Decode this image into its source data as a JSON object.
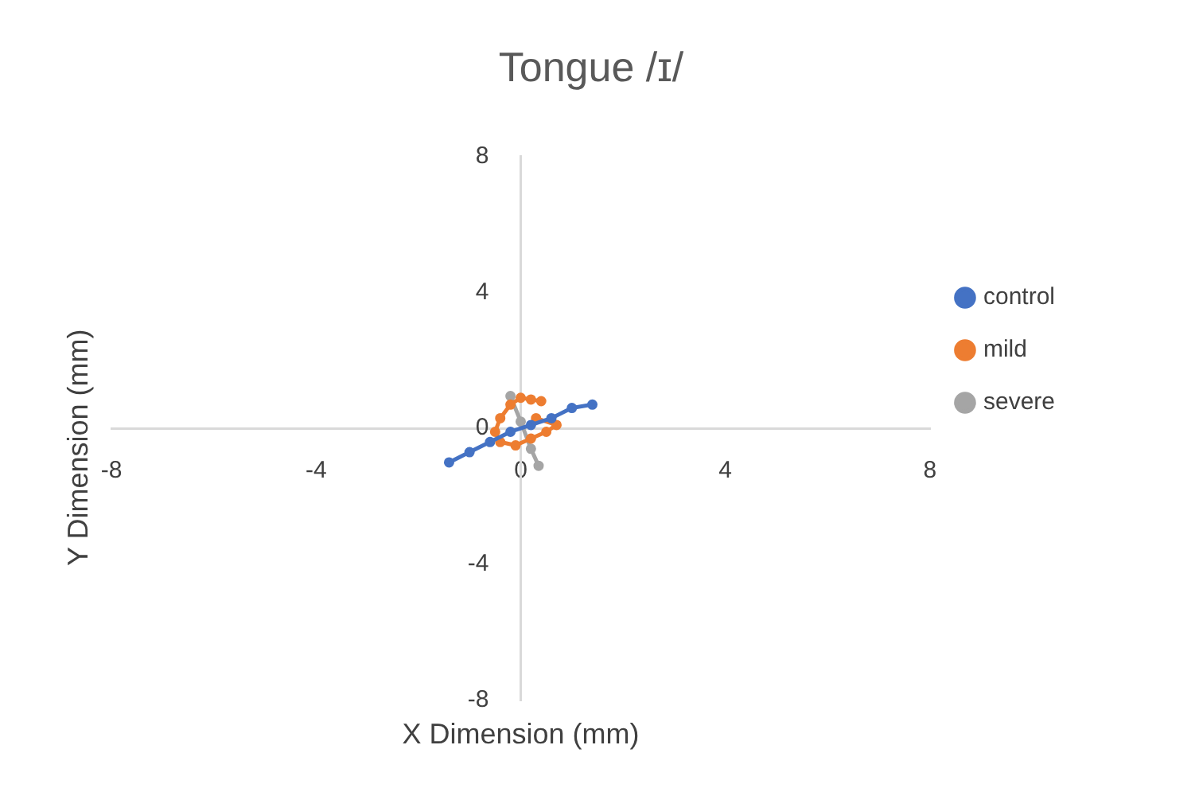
{
  "chart_data": {
    "type": "line",
    "title": "Tongue /ɪ/",
    "xlabel": "X Dimension (mm)",
    "ylabel": "Y Dimension (mm)",
    "xlim": [
      -8,
      8
    ],
    "xticks": [
      -8,
      -4,
      0,
      4,
      8
    ],
    "ylim": [
      -8,
      8
    ],
    "yticks": [
      -8,
      -4,
      0,
      4,
      8
    ],
    "grid": false,
    "legend": "right",
    "marker": "circle",
    "line_style": "solid",
    "series": [
      {
        "name": "control",
        "color": "#4472c4",
        "x": [
          -1.4,
          -1.0,
          -0.6,
          -0.2,
          0.2,
          0.6,
          1.0,
          1.4
        ],
        "values": [
          -1.0,
          -0.7,
          -0.4,
          -0.1,
          0.1,
          0.3,
          0.6,
          0.7
        ]
      },
      {
        "name": "mild",
        "color": "#ed7d31",
        "x": [
          0.4,
          0.2,
          0.0,
          -0.2,
          -0.4,
          -0.5,
          -0.4,
          -0.1,
          0.2,
          0.5,
          0.7,
          0.3
        ],
        "values": [
          0.8,
          0.85,
          0.9,
          0.7,
          0.3,
          -0.1,
          -0.4,
          -0.5,
          -0.3,
          -0.1,
          0.1,
          0.3
        ]
      },
      {
        "name": "severe",
        "color": "#a5a5a5",
        "x": [
          -0.2,
          0,
          0.2,
          0.35
        ],
        "values": [
          0.95,
          0.2,
          -0.6,
          -1.1
        ]
      }
    ]
  }
}
